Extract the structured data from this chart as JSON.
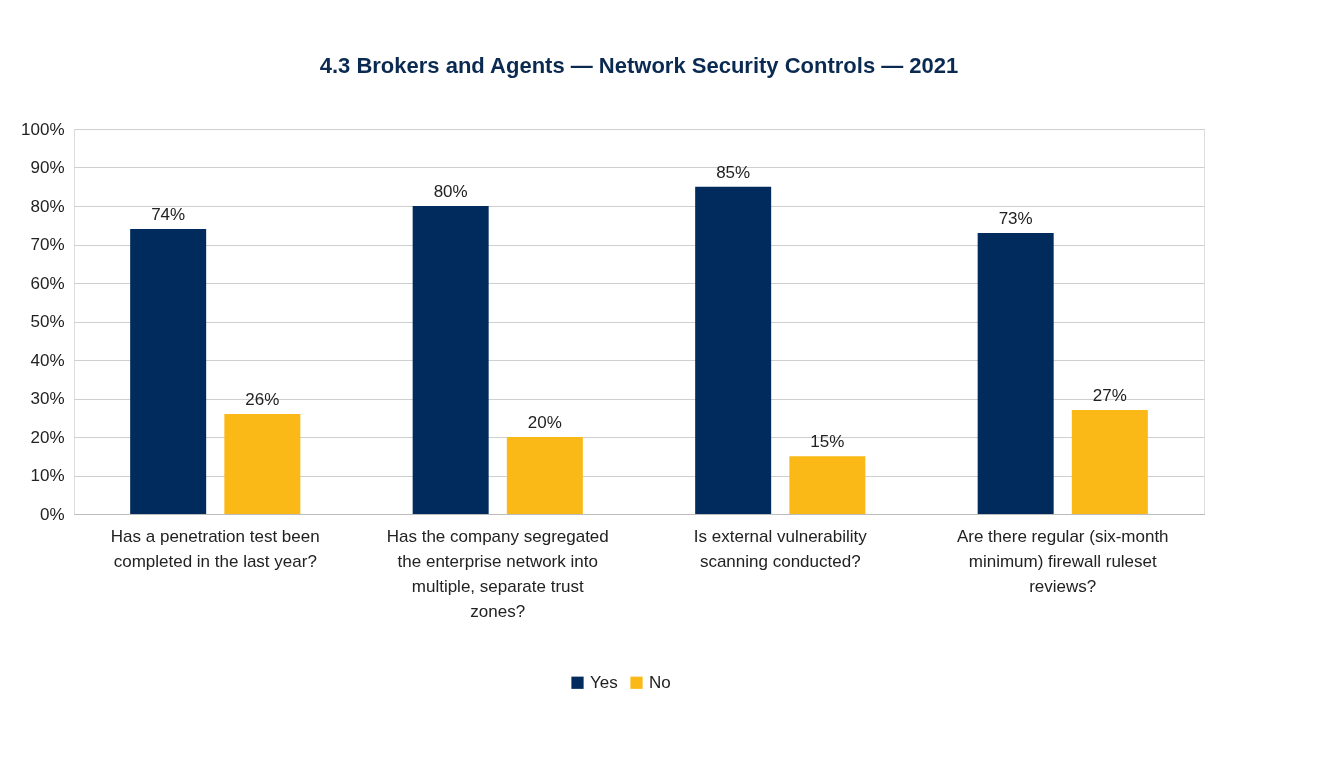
{
  "chart_data": {
    "type": "bar",
    "title": "4.3 Brokers and Agents — Network Security Controls — 2021",
    "categories": [
      "Has a penetration test been completed in the last year?",
      "Has the company segregated the enterprise network into multiple, separate trust zones?",
      "Is external vulnerability scanning conducted?",
      "Are there regular (six-month minimum) firewall ruleset reviews?"
    ],
    "series": [
      {
        "name": "Yes",
        "color": "#002b5c",
        "values": [
          74,
          80,
          85,
          73
        ]
      },
      {
        "name": "No",
        "color": "#fbb917",
        "values": [
          26,
          20,
          15,
          27
        ]
      }
    ],
    "ylim": [
      0,
      100
    ],
    "yticks": [
      {
        "value": 0,
        "label": "0%"
      },
      {
        "value": 10,
        "label": "10%"
      },
      {
        "value": 20,
        "label": "20%"
      },
      {
        "value": 30,
        "label": "30%"
      },
      {
        "value": 40,
        "label": "40%"
      },
      {
        "value": 50,
        "label": "50%"
      },
      {
        "value": 60,
        "label": "60%"
      },
      {
        "value": 70,
        "label": "70%"
      },
      {
        "value": 80,
        "label": "80%"
      },
      {
        "value": 90,
        "label": "90%"
      },
      {
        "value": 100,
        "label": "100%"
      }
    ],
    "value_labels": [
      [
        "74%",
        "80%",
        "85%",
        "73%"
      ],
      [
        "26%",
        "20%",
        "15%",
        "27%"
      ]
    ],
    "grid": "y",
    "legend": "bottom"
  }
}
